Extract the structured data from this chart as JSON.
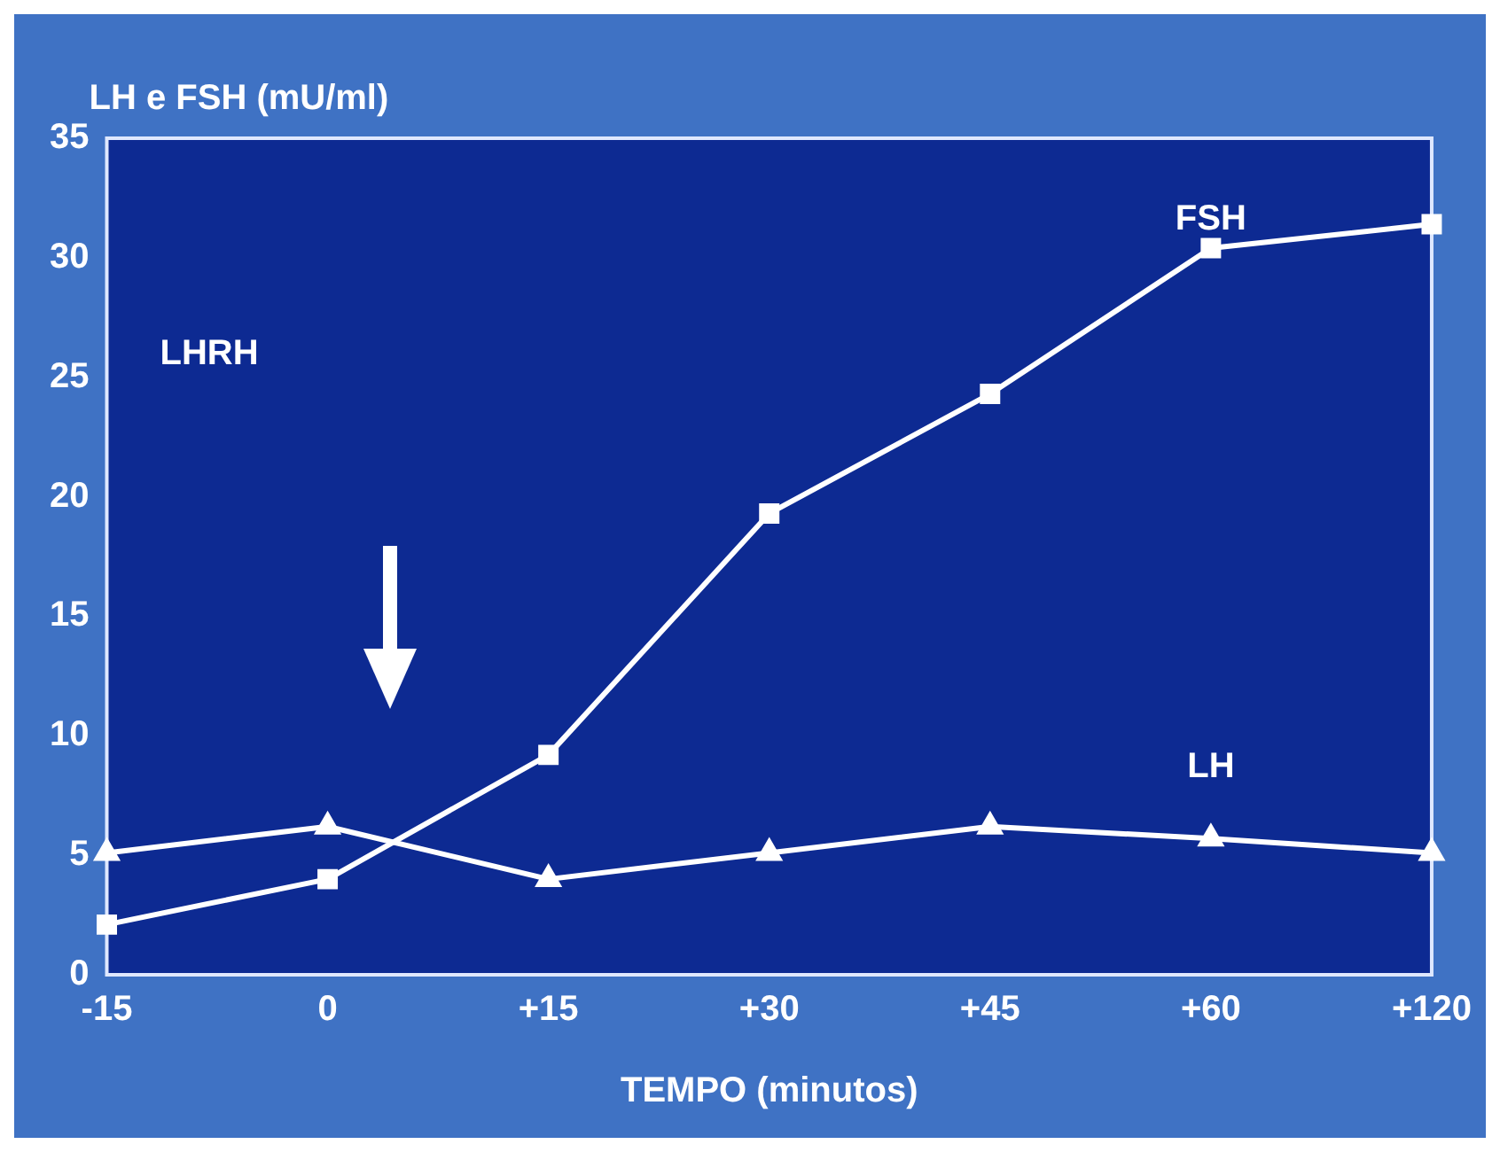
{
  "chart_data": {
    "type": "line",
    "xlabel": "TEMPO (minutos)",
    "ylabel": "LH e FSH (mU/ml)",
    "categories": [
      "-15",
      "0",
      "+15",
      "+30",
      "+45",
      "+60",
      "+120"
    ],
    "series": [
      {
        "name": "FSH",
        "color": "#ffffff",
        "marker": "square",
        "values": [
          2.1,
          4.0,
          9.2,
          19.3,
          24.3,
          30.4,
          31.4
        ]
      },
      {
        "name": "LH",
        "color": "#ffffff",
        "marker": "triangle",
        "values": [
          5.1,
          6.2,
          4.0,
          5.1,
          6.2,
          5.7,
          5.1
        ]
      }
    ],
    "ylim": [
      0,
      35
    ],
    "yticks": [
      0,
      5,
      10,
      15,
      20,
      25,
      30,
      35
    ],
    "grid": false,
    "legend": false,
    "line_style": "solid",
    "annotations": [
      "LHRH"
    ]
  }
}
